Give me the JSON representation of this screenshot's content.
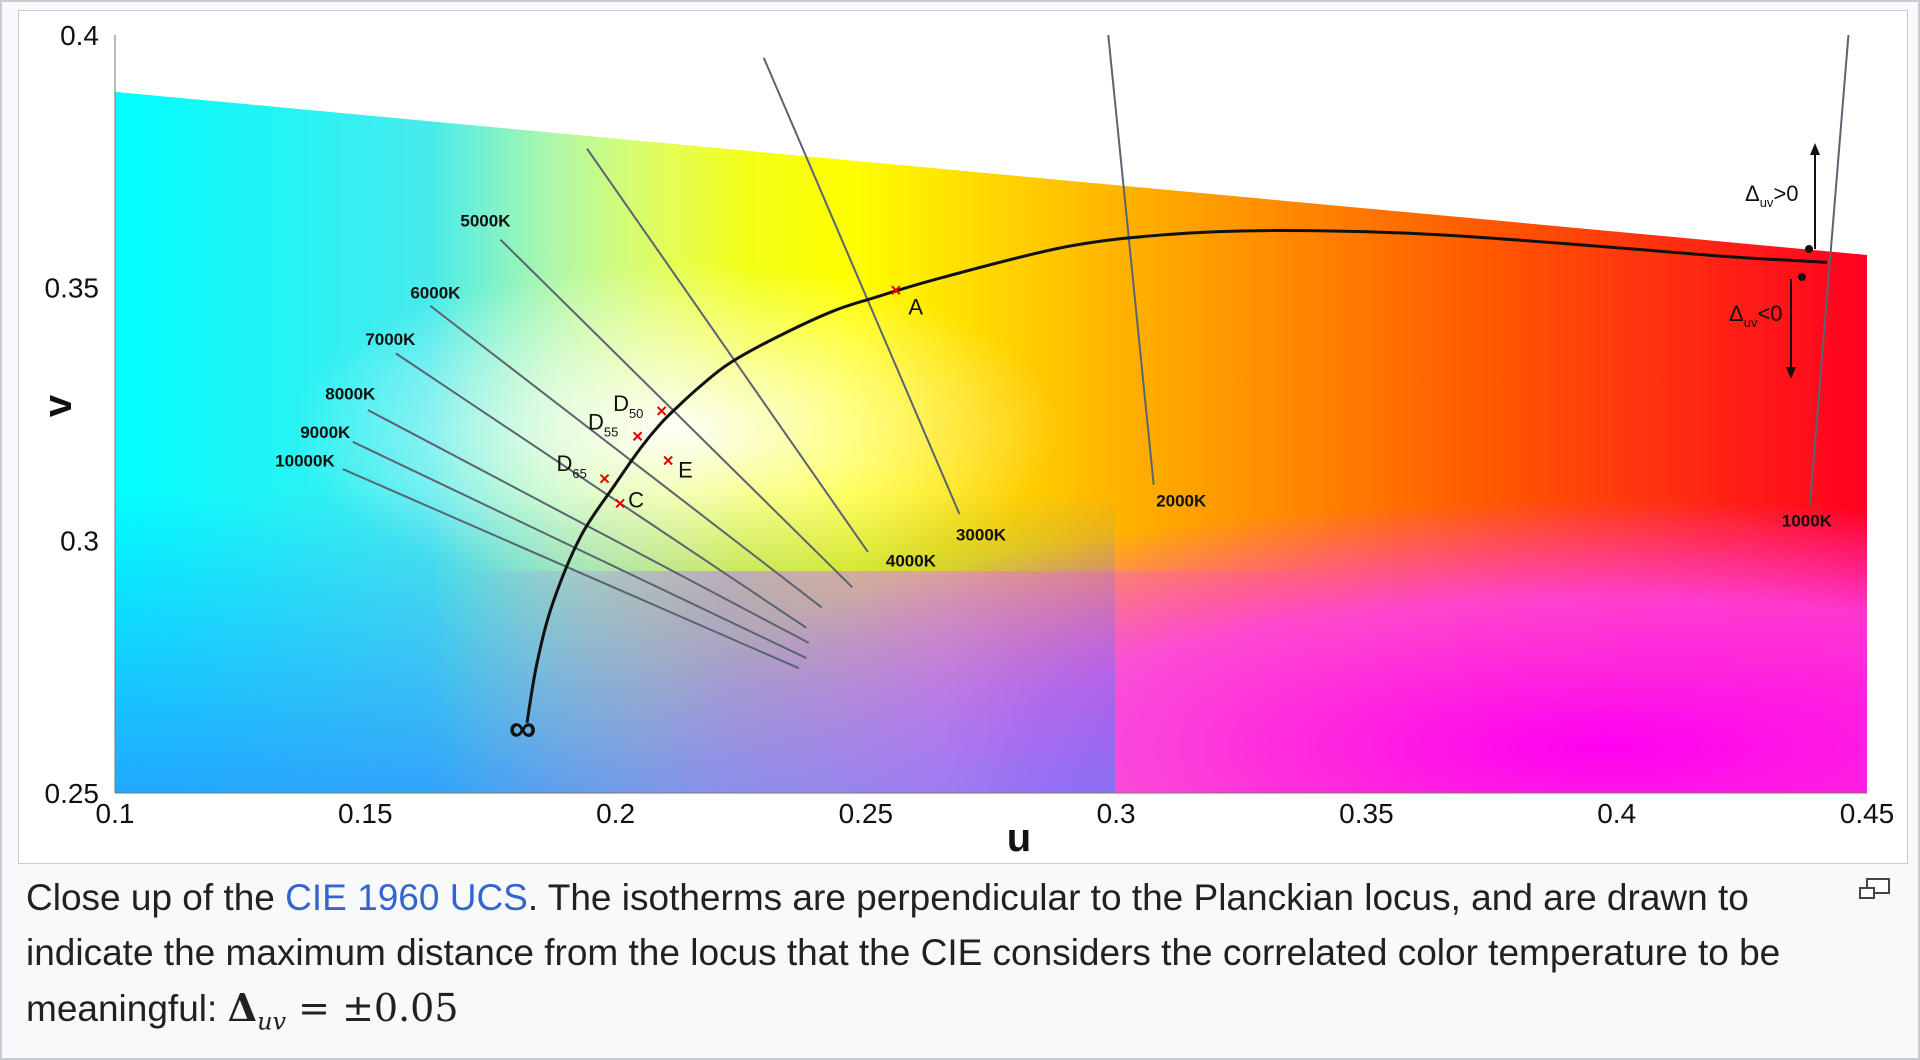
{
  "chart_data": {
    "type": "diagram",
    "xlabel": "u",
    "ylabel": "v",
    "xlim": [
      0.1,
      0.45
    ],
    "ylim": [
      0.25,
      0.4
    ],
    "x_ticks": [
      "0.1",
      "0.15",
      "0.2",
      "0.25",
      "0.3",
      "0.35",
      "0.4",
      "0.45"
    ],
    "y_ticks": [
      "0.4",
      "0.35",
      "0.3",
      "0.25"
    ],
    "locus_end_label": "∞",
    "locus": [
      [
        0.1823,
        0.2639
      ],
      [
        0.1843,
        0.2757
      ],
      [
        0.1875,
        0.2877
      ],
      [
        0.1931,
        0.3009
      ],
      [
        0.1998,
        0.3109
      ],
      [
        0.2051,
        0.3184
      ],
      [
        0.2091,
        0.3232
      ],
      [
        0.2128,
        0.3268
      ],
      [
        0.2168,
        0.3304
      ],
      [
        0.2224,
        0.3348
      ],
      [
        0.2308,
        0.3395
      ],
      [
        0.2428,
        0.3451
      ],
      [
        0.2516,
        0.348
      ],
      [
        0.2656,
        0.3521
      ],
      [
        0.29,
        0.3581
      ],
      [
        0.31,
        0.3605
      ],
      [
        0.33,
        0.3613
      ],
      [
        0.36,
        0.3607
      ],
      [
        0.39,
        0.3587
      ],
      [
        0.42,
        0.3563
      ],
      [
        0.442,
        0.355
      ]
    ],
    "isotherms": [
      {
        "label": "10000K",
        "from": [
          0.1455,
          0.3141
        ],
        "to": [
          0.2366,
          0.2747
        ],
        "label_at": [
          0.132,
          0.3146
        ]
      },
      {
        "label": "9000K",
        "from": [
          0.1475,
          0.3195
        ],
        "to": [
          0.2381,
          0.2767
        ],
        "label_at": [
          0.137,
          0.3203
        ]
      },
      {
        "label": "8000K",
        "from": [
          0.1505,
          0.3258
        ],
        "to": [
          0.2386,
          0.2797
        ],
        "label_at": [
          0.142,
          0.3279
        ]
      },
      {
        "label": "7000K",
        "from": [
          0.1561,
          0.337
        ],
        "to": [
          0.2381,
          0.2827
        ],
        "label_at": [
          0.15,
          0.3387
        ]
      },
      {
        "label": "6000K",
        "from": [
          0.163,
          0.3464
        ],
        "to": [
          0.2412,
          0.2867
        ],
        "label_at": [
          0.159,
          0.3479
        ]
      },
      {
        "label": "5000K",
        "from": [
          0.177,
          0.3595
        ],
        "to": [
          0.2473,
          0.2907
        ],
        "label_at": [
          0.169,
          0.3621
        ]
      },
      {
        "label": "4000K",
        "from": [
          0.1943,
          0.3775
        ],
        "to": [
          0.2504,
          0.2977
        ],
        "label_at": [
          0.254,
          0.2948
        ]
      },
      {
        "label": "3000K",
        "from": [
          0.2296,
          0.3955
        ],
        "to": [
          0.2687,
          0.3052
        ],
        "label_at": [
          0.268,
          0.3
        ]
      },
      {
        "label": "2000K",
        "from": [
          0.298,
          0.4042
        ],
        "to": [
          0.3075,
          0.311
        ],
        "label_at": [
          0.308,
          0.3067
        ]
      },
      {
        "label": "1000K",
        "from": [
          0.4465,
          0.4025
        ],
        "to": [
          0.4386,
          0.307
        ],
        "label_at": [
          0.433,
          0.3027
        ]
      }
    ],
    "illuminants": [
      {
        "label": "A",
        "sub": "",
        "u": 0.256,
        "v": 0.3495,
        "label_at": [
          0.2585,
          0.3447
        ]
      },
      {
        "label": "D",
        "sub": "50",
        "u": 0.2092,
        "v": 0.3256,
        "label_at": [
          0.1995,
          0.3256
        ]
      },
      {
        "label": "D",
        "sub": "55",
        "u": 0.2044,
        "v": 0.3206,
        "label_at": [
          0.1945,
          0.3219
        ]
      },
      {
        "label": "E",
        "sub": "",
        "u": 0.2105,
        "v": 0.3158,
        "label_at": [
          0.2125,
          0.3124
        ]
      },
      {
        "label": "D",
        "sub": "65",
        "u": 0.1978,
        "v": 0.3122,
        "label_at": [
          0.1882,
          0.3137
        ]
      },
      {
        "label": "C",
        "sub": "",
        "u": 0.2009,
        "v": 0.3073,
        "label_at": [
          0.2025,
          0.3065
        ]
      }
    ],
    "delta_annotations": [
      {
        "label": "Δ",
        "sub": "uv",
        "cond": ">0"
      },
      {
        "label": "Δ",
        "sub": "uv",
        "cond": "<0"
      }
    ]
  },
  "caption": {
    "prefix": "Close up of the ",
    "link": "CIE 1960 UCS",
    "rest_line1": ". The isotherms are perpendicular to the Planckian locus, and are drawn to",
    "line2": "indicate the maximum distance from the locus that the CIE considers the correlated color temperature to be",
    "line3_prefix": "meaningful: ",
    "math": "Δuv = ±0.05",
    "math_base": "Δ",
    "math_sub": "uv",
    "math_rest": " = ±0.05"
  },
  "icons": {
    "enlarge": "magnify-icon"
  }
}
